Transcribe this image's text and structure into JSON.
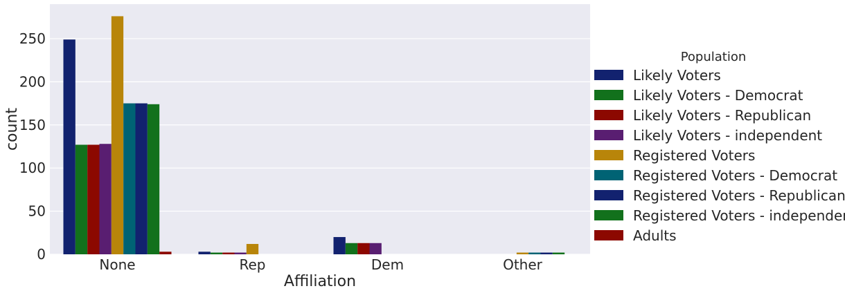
{
  "chart_data": {
    "type": "bar",
    "xlabel": "Affiliation",
    "ylabel": "count",
    "categories": [
      "None",
      "Rep",
      "Dem",
      "Other"
    ],
    "ylim": [
      0,
      290
    ],
    "yticks": [
      0,
      50,
      100,
      150,
      200,
      250
    ],
    "grid": true,
    "legend": {
      "title": "Population",
      "placement": "right"
    },
    "series": [
      {
        "name": "Likely Voters",
        "color": "#12226f",
        "values": [
          249,
          3,
          20,
          0
        ]
      },
      {
        "name": "Likely Voters - Democrat",
        "color": "#12711c",
        "values": [
          127,
          2,
          13,
          0
        ]
      },
      {
        "name": "Likely Voters - Republican",
        "color": "#8c0800",
        "values": [
          127,
          2,
          13,
          0
        ]
      },
      {
        "name": "Likely Voters - independent",
        "color": "#591e71",
        "values": [
          128,
          2,
          13,
          0
        ]
      },
      {
        "name": "Registered Voters",
        "color": "#b8850a",
        "values": [
          276,
          12,
          0,
          2
        ]
      },
      {
        "name": "Registered Voters - Democrat",
        "color": "#006374",
        "values": [
          175,
          0,
          0,
          2
        ]
      },
      {
        "name": "Registered Voters - Republican",
        "color": "#12226f",
        "values": [
          175,
          0,
          0,
          2
        ]
      },
      {
        "name": "Registered Voters - independent",
        "color": "#12711c",
        "values": [
          174,
          0,
          0,
          2
        ]
      },
      {
        "name": "Adults",
        "color": "#8c0800",
        "values": [
          3,
          0,
          0,
          0
        ]
      }
    ]
  }
}
